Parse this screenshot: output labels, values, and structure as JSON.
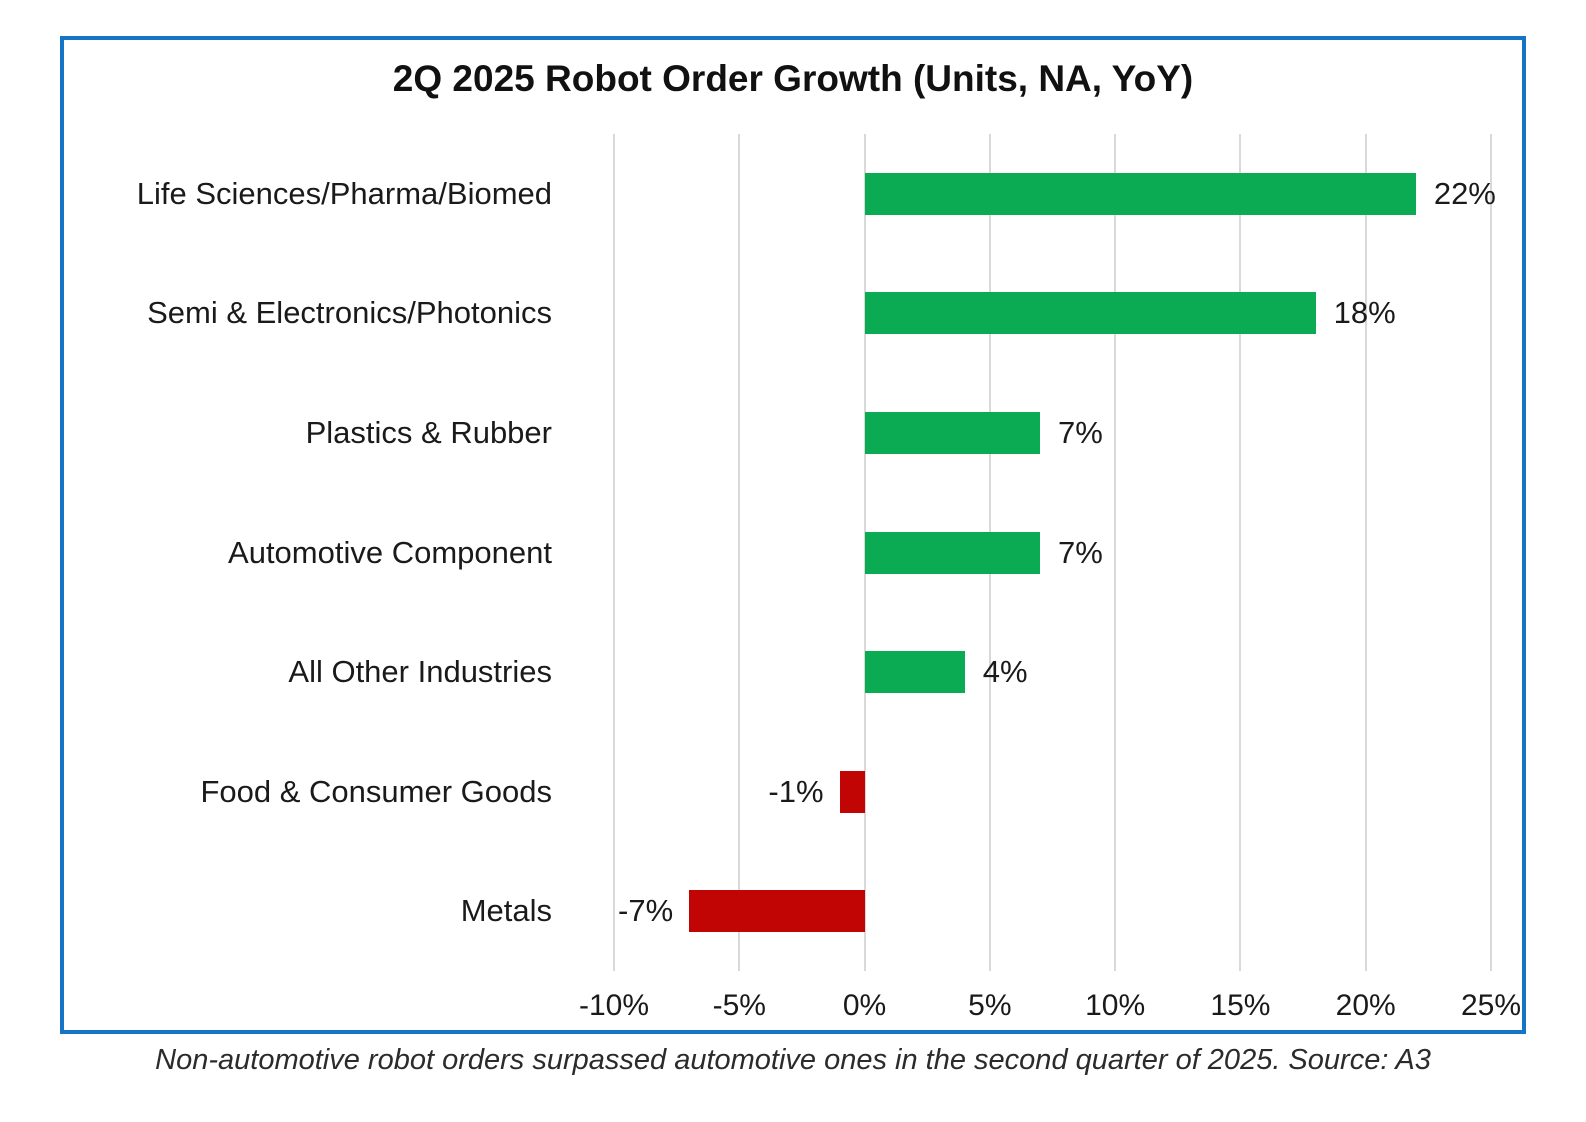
{
  "chart_data": {
    "type": "bar",
    "orientation": "horizontal",
    "title": "2Q 2025 Robot Order Growth (Units, NA, YoY)",
    "categories": [
      "Life Sciences/Pharma/Biomed",
      "Semi & Electronics/Photonics",
      "Plastics & Rubber",
      "Automotive Component",
      "All Other Industries",
      "Food & Consumer Goods",
      "Metals"
    ],
    "values": [
      22,
      18,
      7,
      7,
      4,
      -1,
      -7
    ],
    "value_labels": [
      "22%",
      "18%",
      "7%",
      "7%",
      "4%",
      "-1%",
      "-7%"
    ],
    "x_tick_values": [
      -10,
      -5,
      0,
      5,
      10,
      15,
      20,
      25
    ],
    "x_tick_labels": [
      "-10%",
      "-5%",
      "0%",
      "5%",
      "10%",
      "15%",
      "20%",
      "25%"
    ],
    "xlim": [
      -10,
      25
    ],
    "grid": true,
    "legend": false,
    "colors": {
      "positive": "#0aab53",
      "negative": "#c10504",
      "frame_border": "#1674c4",
      "gridline": "#d9d9d9",
      "text": "#1a1a1a"
    }
  },
  "caption": "Non-automotive robot orders surpassed automotive ones in the second quarter of 2025. Source: A3"
}
